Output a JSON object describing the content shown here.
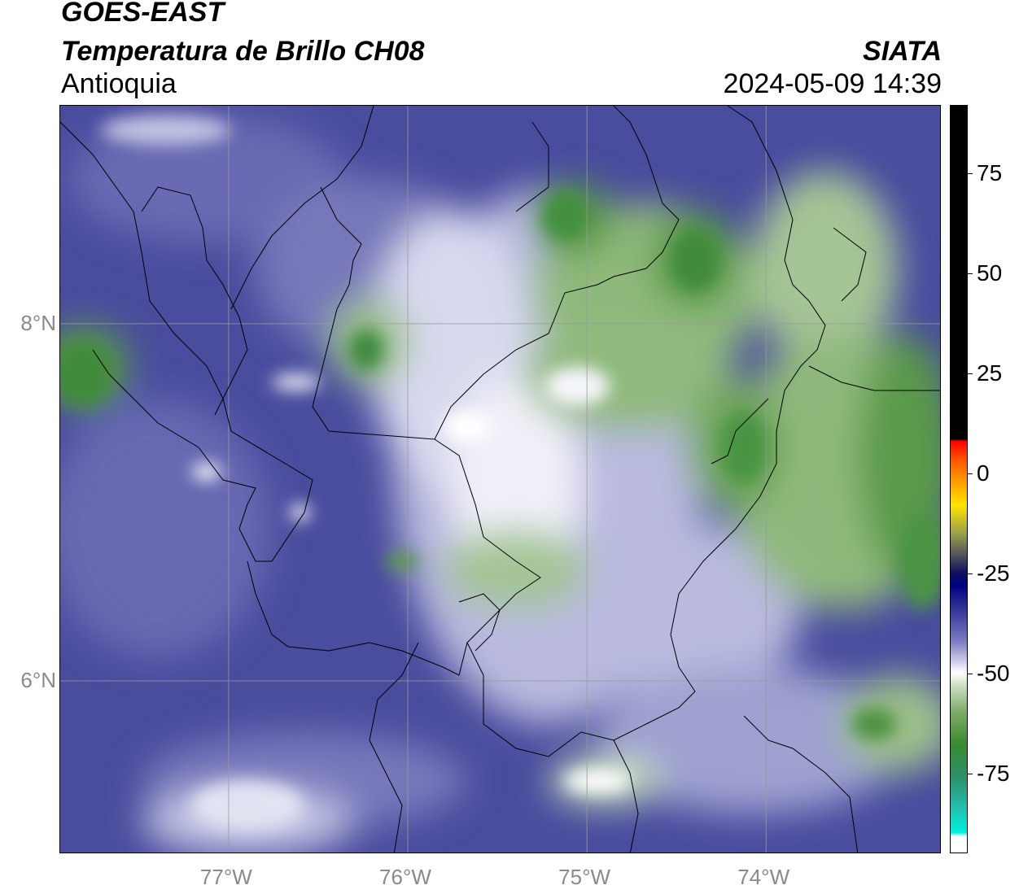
{
  "header": {
    "satellite": "GOES-EAST",
    "product": "Temperatura de Brillo CH08",
    "region": "Antioquia",
    "organization": "SIATA",
    "timestamp": "2024-05-09 14:39"
  },
  "map": {
    "lon_range": [
      -77.94,
      -73.02
    ],
    "lat_range": [
      5.03,
      9.22
    ],
    "lat_gridlines": [
      {
        "value": 8,
        "label": "8°N"
      },
      {
        "value": 6,
        "label": "6°N"
      }
    ],
    "lon_gridlines": [
      {
        "value": -77,
        "label": "77°W"
      },
      {
        "value": -76,
        "label": "76°W"
      },
      {
        "value": -75,
        "label": "75°W"
      },
      {
        "value": -74,
        "label": "74°W"
      }
    ],
    "gridline_color": "#9a9a9a"
  },
  "colorbar": {
    "variable": "brightness temperature",
    "range": [
      -95,
      92
    ],
    "ticks": [
      {
        "value": 75,
        "label": "75"
      },
      {
        "value": 50,
        "label": "50"
      },
      {
        "value": 25,
        "label": "25"
      },
      {
        "value": 0,
        "label": "0"
      },
      {
        "value": -25,
        "label": "-25"
      },
      {
        "value": -50,
        "label": "-50"
      },
      {
        "value": -75,
        "label": "-75"
      }
    ],
    "stops": [
      {
        "value": 92,
        "color": "#000000"
      },
      {
        "value": 8.5,
        "color": "#000000"
      },
      {
        "value": 8,
        "color": "#ff0000"
      },
      {
        "value": 3,
        "color": "#ff5a00"
      },
      {
        "value": -2,
        "color": "#ff9a00"
      },
      {
        "value": -8,
        "color": "#ffe400"
      },
      {
        "value": -15,
        "color": "#9aa04a"
      },
      {
        "value": -20,
        "color": "#5a5a5a"
      },
      {
        "value": -25,
        "color": "#101060"
      },
      {
        "value": -28,
        "color": "#000080"
      },
      {
        "value": -35,
        "color": "#3c3c9c"
      },
      {
        "value": -42,
        "color": "#7a7ac0"
      },
      {
        "value": -48,
        "color": "#dcdcf0"
      },
      {
        "value": -50,
        "color": "#ffffff"
      },
      {
        "value": -53,
        "color": "#cfe0c4"
      },
      {
        "value": -60,
        "color": "#7bab66"
      },
      {
        "value": -68,
        "color": "#3a8a30"
      },
      {
        "value": -76,
        "color": "#2e8e6a"
      },
      {
        "value": -84,
        "color": "#22c0b0"
      },
      {
        "value": -90,
        "color": "#00f0e0"
      },
      {
        "value": -91,
        "color": "#ffffff"
      },
      {
        "value": -95,
        "color": "#ffffff"
      }
    ]
  },
  "field_palette": {
    "cold_blue": "#4a4c9e",
    "mid_blue": "#7b7dbd",
    "light_blue": "#b9bade",
    "white": "#f4f4fa",
    "light_green": "#a9c79a",
    "green": "#4f9140",
    "dark_green": "#2f7a2c"
  }
}
